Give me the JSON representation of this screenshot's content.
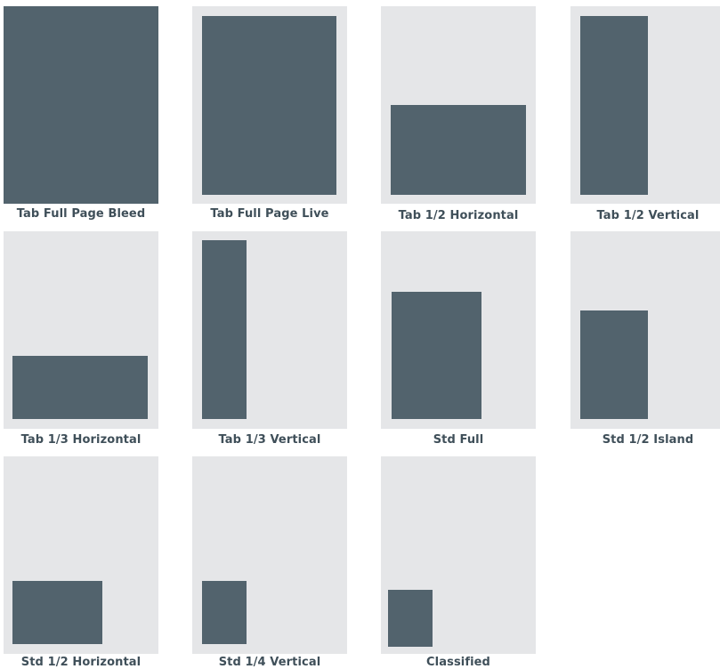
{
  "colors": {
    "page_background": "#ffffff",
    "page_tile": "#e5e6e8",
    "ad_block": "#52636d",
    "label_text": "#3f4f59"
  },
  "ad_sizes": [
    {
      "label": "Tab Full Page Bleed"
    },
    {
      "label": "Tab Full Page Live"
    },
    {
      "label": "Tab 1/2 Horizontal"
    },
    {
      "label": "Tab 1/2 Vertical"
    },
    {
      "label": "Tab 1/3 Horizontal"
    },
    {
      "label": "Tab 1/3 Vertical"
    },
    {
      "label": "Std Full"
    },
    {
      "label": "Std 1/2 Island"
    },
    {
      "label": "Std 1/2 Horizontal"
    },
    {
      "label": "Std 1/4 Vertical"
    },
    {
      "label": "Classified"
    }
  ]
}
